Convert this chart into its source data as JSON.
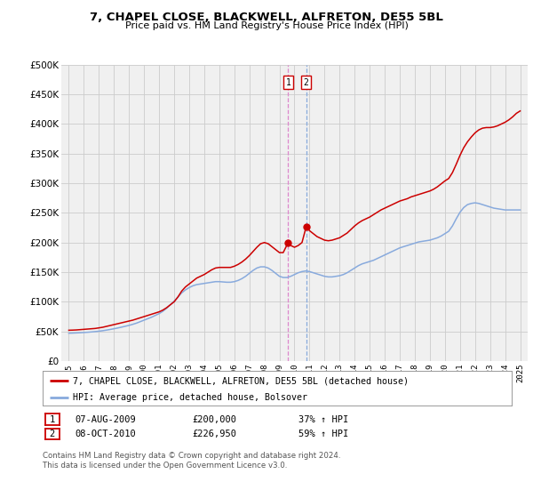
{
  "title": "7, CHAPEL CLOSE, BLACKWELL, ALFRETON, DE55 5BL",
  "subtitle": "Price paid vs. HM Land Registry's House Price Index (HPI)",
  "ylabel_ticks": [
    "£0",
    "£50K",
    "£100K",
    "£150K",
    "£200K",
    "£250K",
    "£300K",
    "£350K",
    "£400K",
    "£450K",
    "£500K"
  ],
  "ylim": [
    0,
    500000
  ],
  "xlim_start": 1994.5,
  "xlim_end": 2025.5,
  "red_line_label": "7, CHAPEL CLOSE, BLACKWELL, ALFRETON, DE55 5BL (detached house)",
  "blue_line_label": "HPI: Average price, detached house, Bolsover",
  "marker1_x": 2009.58,
  "marker2_x": 2010.78,
  "marker1_y": 200000,
  "marker2_y": 226950,
  "transaction1": [
    "1",
    "07-AUG-2009",
    "£200,000",
    "37% ↑ HPI"
  ],
  "transaction2": [
    "2",
    "08-OCT-2010",
    "£226,950",
    "59% ↑ HPI"
  ],
  "footer": "Contains HM Land Registry data © Crown copyright and database right 2024.\nThis data is licensed under the Open Government Licence v3.0.",
  "red_hpi_data": [
    [
      1995.0,
      52000
    ],
    [
      1995.25,
      52200
    ],
    [
      1995.5,
      52500
    ],
    [
      1995.75,
      53000
    ],
    [
      1996.0,
      53500
    ],
    [
      1996.25,
      54000
    ],
    [
      1996.5,
      54500
    ],
    [
      1996.75,
      55000
    ],
    [
      1997.0,
      56000
    ],
    [
      1997.25,
      57000
    ],
    [
      1997.5,
      58500
    ],
    [
      1997.75,
      60000
    ],
    [
      1998.0,
      61500
    ],
    [
      1998.25,
      63000
    ],
    [
      1998.5,
      64500
    ],
    [
      1998.75,
      66000
    ],
    [
      1999.0,
      67500
    ],
    [
      1999.25,
      69000
    ],
    [
      1999.5,
      71000
    ],
    [
      1999.75,
      73000
    ],
    [
      2000.0,
      75000
    ],
    [
      2000.25,
      77000
    ],
    [
      2000.5,
      79000
    ],
    [
      2000.75,
      81000
    ],
    [
      2001.0,
      83000
    ],
    [
      2001.25,
      86000
    ],
    [
      2001.5,
      90000
    ],
    [
      2001.75,
      95000
    ],
    [
      2002.0,
      100000
    ],
    [
      2002.25,
      108000
    ],
    [
      2002.5,
      118000
    ],
    [
      2002.75,
      125000
    ],
    [
      2003.0,
      130000
    ],
    [
      2003.25,
      135000
    ],
    [
      2003.5,
      140000
    ],
    [
      2003.75,
      143000
    ],
    [
      2004.0,
      146000
    ],
    [
      2004.25,
      150000
    ],
    [
      2004.5,
      154000
    ],
    [
      2004.75,
      157000
    ],
    [
      2005.0,
      158000
    ],
    [
      2005.25,
      158000
    ],
    [
      2005.5,
      158000
    ],
    [
      2005.75,
      158000
    ],
    [
      2006.0,
      160000
    ],
    [
      2006.25,
      163000
    ],
    [
      2006.5,
      167000
    ],
    [
      2006.75,
      172000
    ],
    [
      2007.0,
      178000
    ],
    [
      2007.25,
      185000
    ],
    [
      2007.5,
      192000
    ],
    [
      2007.75,
      198000
    ],
    [
      2008.0,
      200000
    ],
    [
      2008.25,
      198000
    ],
    [
      2008.5,
      193000
    ],
    [
      2008.75,
      188000
    ],
    [
      2009.0,
      183000
    ],
    [
      2009.25,
      183000
    ],
    [
      2009.58,
      200000
    ],
    [
      2009.75,
      195000
    ],
    [
      2010.0,
      192000
    ],
    [
      2010.25,
      195000
    ],
    [
      2010.5,
      200000
    ],
    [
      2010.78,
      226950
    ],
    [
      2011.0,
      220000
    ],
    [
      2011.25,
      215000
    ],
    [
      2011.5,
      210000
    ],
    [
      2011.75,
      207000
    ],
    [
      2012.0,
      204000
    ],
    [
      2012.25,
      203000
    ],
    [
      2012.5,
      204000
    ],
    [
      2012.75,
      206000
    ],
    [
      2013.0,
      208000
    ],
    [
      2013.25,
      212000
    ],
    [
      2013.5,
      216000
    ],
    [
      2013.75,
      222000
    ],
    [
      2014.0,
      228000
    ],
    [
      2014.25,
      233000
    ],
    [
      2014.5,
      237000
    ],
    [
      2014.75,
      240000
    ],
    [
      2015.0,
      243000
    ],
    [
      2015.25,
      247000
    ],
    [
      2015.5,
      251000
    ],
    [
      2015.75,
      255000
    ],
    [
      2016.0,
      258000
    ],
    [
      2016.25,
      261000
    ],
    [
      2016.5,
      264000
    ],
    [
      2016.75,
      267000
    ],
    [
      2017.0,
      270000
    ],
    [
      2017.25,
      272000
    ],
    [
      2017.5,
      274000
    ],
    [
      2017.75,
      277000
    ],
    [
      2018.0,
      279000
    ],
    [
      2018.25,
      281000
    ],
    [
      2018.5,
      283000
    ],
    [
      2018.75,
      285000
    ],
    [
      2019.0,
      287000
    ],
    [
      2019.25,
      290000
    ],
    [
      2019.5,
      294000
    ],
    [
      2019.75,
      299000
    ],
    [
      2020.0,
      304000
    ],
    [
      2020.25,
      308000
    ],
    [
      2020.5,
      318000
    ],
    [
      2020.75,
      332000
    ],
    [
      2021.0,
      347000
    ],
    [
      2021.25,
      360000
    ],
    [
      2021.5,
      370000
    ],
    [
      2021.75,
      378000
    ],
    [
      2022.0,
      385000
    ],
    [
      2022.25,
      390000
    ],
    [
      2022.5,
      393000
    ],
    [
      2022.75,
      394000
    ],
    [
      2023.0,
      394000
    ],
    [
      2023.25,
      395000
    ],
    [
      2023.5,
      397000
    ],
    [
      2023.75,
      400000
    ],
    [
      2024.0,
      403000
    ],
    [
      2024.25,
      407000
    ],
    [
      2024.5,
      412000
    ],
    [
      2024.75,
      418000
    ],
    [
      2025.0,
      422000
    ]
  ],
  "blue_hpi_data": [
    [
      1995.0,
      47000
    ],
    [
      1995.25,
      47200
    ],
    [
      1995.5,
      47500
    ],
    [
      1995.75,
      47800
    ],
    [
      1996.0,
      48200
    ],
    [
      1996.25,
      48600
    ],
    [
      1996.5,
      49100
    ],
    [
      1996.75,
      49700
    ],
    [
      1997.0,
      50400
    ],
    [
      1997.25,
      51200
    ],
    [
      1997.5,
      52200
    ],
    [
      1997.75,
      53300
    ],
    [
      1998.0,
      54500
    ],
    [
      1998.25,
      55800
    ],
    [
      1998.5,
      57200
    ],
    [
      1998.75,
      58700
    ],
    [
      1999.0,
      60200
    ],
    [
      1999.25,
      62000
    ],
    [
      1999.5,
      64000
    ],
    [
      1999.75,
      66500
    ],
    [
      2000.0,
      69000
    ],
    [
      2000.25,
      71500
    ],
    [
      2000.5,
      74000
    ],
    [
      2000.75,
      77000
    ],
    [
      2001.0,
      80000
    ],
    [
      2001.25,
      84000
    ],
    [
      2001.5,
      89000
    ],
    [
      2001.75,
      95000
    ],
    [
      2002.0,
      101000
    ],
    [
      2002.25,
      108000
    ],
    [
      2002.5,
      115000
    ],
    [
      2002.75,
      120000
    ],
    [
      2003.0,
      124000
    ],
    [
      2003.25,
      127000
    ],
    [
      2003.5,
      129000
    ],
    [
      2003.75,
      130000
    ],
    [
      2004.0,
      131000
    ],
    [
      2004.25,
      132000
    ],
    [
      2004.5,
      133000
    ],
    [
      2004.75,
      134000
    ],
    [
      2005.0,
      134000
    ],
    [
      2005.25,
      133500
    ],
    [
      2005.5,
      133000
    ],
    [
      2005.75,
      133000
    ],
    [
      2006.0,
      134000
    ],
    [
      2006.25,
      136000
    ],
    [
      2006.5,
      139000
    ],
    [
      2006.75,
      143000
    ],
    [
      2007.0,
      148000
    ],
    [
      2007.25,
      153000
    ],
    [
      2007.5,
      157000
    ],
    [
      2007.75,
      159000
    ],
    [
      2008.0,
      159000
    ],
    [
      2008.25,
      157000
    ],
    [
      2008.5,
      153000
    ],
    [
      2008.75,
      148000
    ],
    [
      2009.0,
      143000
    ],
    [
      2009.25,
      141000
    ],
    [
      2009.5,
      141000
    ],
    [
      2009.75,
      143000
    ],
    [
      2010.0,
      146000
    ],
    [
      2010.25,
      149000
    ],
    [
      2010.5,
      151000
    ],
    [
      2010.75,
      152000
    ],
    [
      2011.0,
      151000
    ],
    [
      2011.25,
      149000
    ],
    [
      2011.5,
      147000
    ],
    [
      2011.75,
      145000
    ],
    [
      2012.0,
      143000
    ],
    [
      2012.25,
      142000
    ],
    [
      2012.5,
      142000
    ],
    [
      2012.75,
      143000
    ],
    [
      2013.0,
      144000
    ],
    [
      2013.25,
      146000
    ],
    [
      2013.5,
      149000
    ],
    [
      2013.75,
      153000
    ],
    [
      2014.0,
      157000
    ],
    [
      2014.25,
      161000
    ],
    [
      2014.5,
      164000
    ],
    [
      2014.75,
      166000
    ],
    [
      2015.0,
      168000
    ],
    [
      2015.25,
      170000
    ],
    [
      2015.5,
      173000
    ],
    [
      2015.75,
      176000
    ],
    [
      2016.0,
      179000
    ],
    [
      2016.25,
      182000
    ],
    [
      2016.5,
      185000
    ],
    [
      2016.75,
      188000
    ],
    [
      2017.0,
      191000
    ],
    [
      2017.25,
      193000
    ],
    [
      2017.5,
      195000
    ],
    [
      2017.75,
      197000
    ],
    [
      2018.0,
      199000
    ],
    [
      2018.25,
      201000
    ],
    [
      2018.5,
      202000
    ],
    [
      2018.75,
      203000
    ],
    [
      2019.0,
      204000
    ],
    [
      2019.25,
      206000
    ],
    [
      2019.5,
      208000
    ],
    [
      2019.75,
      211000
    ],
    [
      2020.0,
      215000
    ],
    [
      2020.25,
      219000
    ],
    [
      2020.5,
      228000
    ],
    [
      2020.75,
      240000
    ],
    [
      2021.0,
      251000
    ],
    [
      2021.25,
      259000
    ],
    [
      2021.5,
      264000
    ],
    [
      2021.75,
      266000
    ],
    [
      2022.0,
      267000
    ],
    [
      2022.25,
      266000
    ],
    [
      2022.5,
      264000
    ],
    [
      2022.75,
      262000
    ],
    [
      2023.0,
      260000
    ],
    [
      2023.25,
      258000
    ],
    [
      2023.5,
      257000
    ],
    [
      2023.75,
      256000
    ],
    [
      2024.0,
      255000
    ],
    [
      2024.25,
      255000
    ],
    [
      2024.5,
      255000
    ],
    [
      2024.75,
      255000
    ],
    [
      2025.0,
      255000
    ]
  ],
  "red_color": "#cc0000",
  "blue_color": "#88aadd",
  "vline1_color": "#dd88cc",
  "vline2_color": "#88aadd",
  "grid_color": "#cccccc",
  "bg_color": "#ffffff",
  "plot_bg_color": "#f0f0f0"
}
